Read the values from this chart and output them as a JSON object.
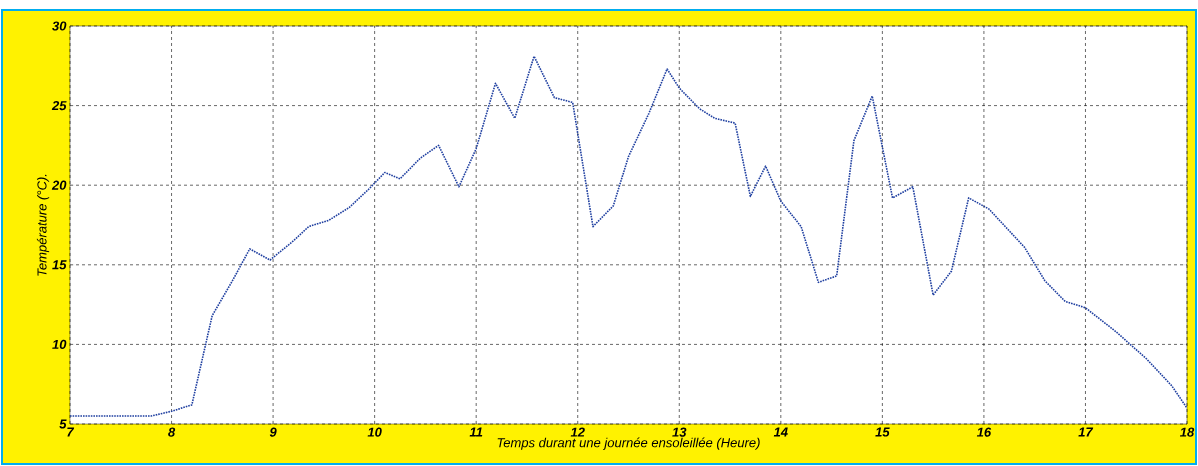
{
  "chart_data": {
    "type": "line",
    "xlabel": "Temps durant une journée ensoleillée (Heure)",
    "ylabel": "Température (°C).",
    "x": [
      7,
      7.8,
      8,
      8.2,
      8.4,
      8.6,
      8.77,
      8.97,
      9.2,
      9.35,
      9.55,
      9.75,
      9.95,
      10.1,
      10.25,
      10.45,
      10.63,
      10.83,
      11.0,
      11.19,
      11.38,
      11.57,
      11.77,
      11.95,
      12.15,
      12.35,
      12.5,
      12.7,
      12.88,
      13.0,
      13.2,
      13.35,
      13.55,
      13.7,
      13.85,
      14.0,
      14.2,
      14.37,
      14.55,
      14.72,
      14.9,
      15.1,
      15.3,
      15.5,
      15.68,
      15.85,
      16.05,
      16.4,
      16.6,
      16.8,
      17.0,
      17.3,
      17.6,
      17.85,
      18
    ],
    "series": [
      {
        "color": "#1f3fa0",
        "values": [
          5.5,
          5.5,
          5.8,
          6.2,
          11.8,
          14,
          16,
          15.3,
          16.5,
          17.4,
          17.8,
          18.6,
          19.8,
          20.8,
          20.4,
          21.7,
          22.5,
          19.9,
          22.3,
          26.4,
          24.2,
          28.1,
          25.5,
          25.2,
          17.4,
          18.7,
          21.8,
          24.5,
          27.3,
          26.1,
          24.8,
          24.2,
          23.9,
          19.3,
          21.2,
          19.0,
          17.4,
          13.9,
          14.3,
          22.8,
          25.6,
          19.2,
          19.9,
          13.1,
          14.6,
          19.2,
          18.5,
          16.1,
          14,
          12.7,
          12.3,
          10.8,
          9.1,
          7.4,
          6.0
        ]
      }
    ],
    "xlim": [
      7,
      18
    ],
    "ylim": [
      5,
      30
    ],
    "xticks": [
      7,
      8,
      9,
      10,
      11,
      12,
      13,
      14,
      15,
      16,
      17,
      18
    ],
    "yticks": [
      5,
      10,
      15,
      20,
      25,
      30
    ],
    "grid": true,
    "line_style": "dotted",
    "marker": "none"
  }
}
